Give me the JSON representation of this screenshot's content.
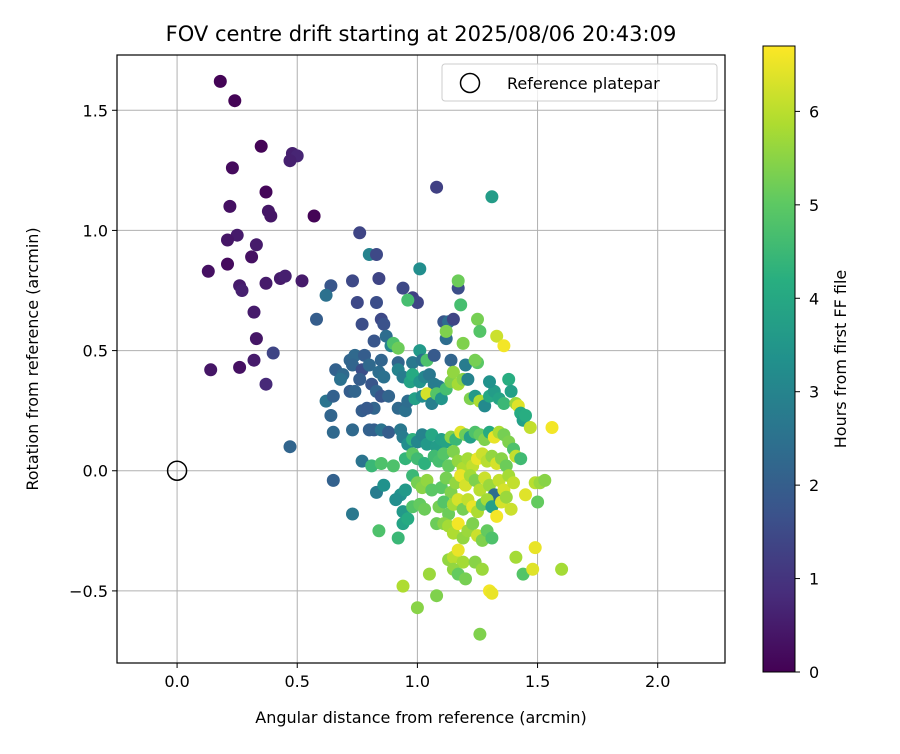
{
  "chart_data": {
    "type": "scatter",
    "title": "FOV centre drift starting at 2025/08/06 20:43:09",
    "xlabel": "Angular distance from reference (arcmin)",
    "ylabel": "Rotation from reference (arcmin)",
    "xlim": [
      -0.25,
      2.28
    ],
    "ylim": [
      -0.8,
      1.73
    ],
    "x_ticks": [
      0.0,
      0.5,
      1.0,
      1.5,
      2.0
    ],
    "x_tick_labels": [
      "0.0",
      "0.5",
      "1.0",
      "1.5",
      "2.0"
    ],
    "y_ticks": [
      -0.5,
      0.0,
      0.5,
      1.0,
      1.5
    ],
    "y_tick_labels": [
      "−0.5",
      "0.0",
      "0.5",
      "1.0",
      "1.5"
    ],
    "grid": true,
    "legend": {
      "position": "top-right",
      "entries": [
        "Reference platepar"
      ]
    },
    "reference_point": {
      "x": 0.0,
      "y": 0.0
    },
    "colorbar": {
      "label": "Hours from first FF file",
      "colormap": "viridis",
      "range": [
        0,
        6.7
      ],
      "ticks": [
        0,
        1,
        2,
        3,
        4,
        5,
        6
      ],
      "tick_labels": [
        "0",
        "1",
        "2",
        "3",
        "4",
        "5",
        "6"
      ]
    },
    "points": [
      [
        0.18,
        1.62,
        0.05
      ],
      [
        0.24,
        1.54,
        0.05
      ],
      [
        0.35,
        1.35,
        0.05
      ],
      [
        0.48,
        1.32,
        0.6
      ],
      [
        0.5,
        1.31,
        0.7
      ],
      [
        0.47,
        1.29,
        0.6
      ],
      [
        0.23,
        1.26,
        0.2
      ],
      [
        0.37,
        1.16,
        0.1
      ],
      [
        0.22,
        1.1,
        0.3
      ],
      [
        0.38,
        1.08,
        0.4
      ],
      [
        0.39,
        1.06,
        0.4
      ],
      [
        0.57,
        1.06,
        0.05
      ],
      [
        1.08,
        1.18,
        1.3
      ],
      [
        1.31,
        1.14,
        3.7
      ],
      [
        0.25,
        0.98,
        0.5
      ],
      [
        0.21,
        0.96,
        0.4
      ],
      [
        0.33,
        0.94,
        0.5
      ],
      [
        0.31,
        0.89,
        0.3
      ],
      [
        0.21,
        0.86,
        0.2
      ],
      [
        0.13,
        0.83,
        0.3
      ],
      [
        0.26,
        0.77,
        0.5
      ],
      [
        0.27,
        0.75,
        0.6
      ],
      [
        0.37,
        0.78,
        0.5
      ],
      [
        0.43,
        0.8,
        0.5
      ],
      [
        0.45,
        0.81,
        0.6
      ],
      [
        0.52,
        0.79,
        0.5
      ],
      [
        0.32,
        0.66,
        0.5
      ],
      [
        0.33,
        0.55,
        0.4
      ],
      [
        0.32,
        0.46,
        0.5
      ],
      [
        0.4,
        0.49,
        1.4
      ],
      [
        0.26,
        0.43,
        0.3
      ],
      [
        0.14,
        0.42,
        0.4
      ],
      [
        0.37,
        0.36,
        0.8
      ],
      [
        0.47,
        0.1,
        2.2
      ],
      [
        0.76,
        0.99,
        1.4
      ],
      [
        0.8,
        0.9,
        3.0
      ],
      [
        0.83,
        0.9,
        1.5
      ],
      [
        0.64,
        0.77,
        1.8
      ],
      [
        0.62,
        0.73,
        2.5
      ],
      [
        0.73,
        0.79,
        1.5
      ],
      [
        0.84,
        0.8,
        1.4
      ],
      [
        0.94,
        0.76,
        1.5
      ],
      [
        0.98,
        0.72,
        1.3
      ],
      [
        1.0,
        0.7,
        1.4
      ],
      [
        0.75,
        0.7,
        1.5
      ],
      [
        0.83,
        0.7,
        1.6
      ],
      [
        0.58,
        0.63,
        2.0
      ],
      [
        0.85,
        0.63,
        1.5
      ],
      [
        0.86,
        0.61,
        1.7
      ],
      [
        0.77,
        0.61,
        1.6
      ],
      [
        0.87,
        0.56,
        2.4
      ],
      [
        0.82,
        0.54,
        1.8
      ],
      [
        0.89,
        0.52,
        3.0
      ],
      [
        0.9,
        0.53,
        4.8
      ],
      [
        0.92,
        0.51,
        5.2
      ],
      [
        0.85,
        0.46,
        2.2
      ],
      [
        0.92,
        0.45,
        2.2
      ],
      [
        0.98,
        0.45,
        2.7
      ],
      [
        1.01,
        0.5,
        3.6
      ],
      [
        1.02,
        0.46,
        2.5
      ],
      [
        1.01,
        0.84,
        3.3
      ],
      [
        1.04,
        0.46,
        4.8
      ],
      [
        0.96,
        0.71,
        4.7
      ],
      [
        1.11,
        0.62,
        1.8
      ],
      [
        1.13,
        0.62,
        2.4
      ],
      [
        1.15,
        0.63,
        1.4
      ],
      [
        1.12,
        0.55,
        2.4
      ],
      [
        1.12,
        0.58,
        5.4
      ],
      [
        1.17,
        0.76,
        1.6
      ],
      [
        1.17,
        0.79,
        5.2
      ],
      [
        1.18,
        0.69,
        4.7
      ],
      [
        1.25,
        0.63,
        5.3
      ],
      [
        1.26,
        0.58,
        4.9
      ],
      [
        1.33,
        0.56,
        6.2
      ],
      [
        1.36,
        0.52,
        6.6
      ],
      [
        1.07,
        0.48,
        1.9
      ],
      [
        1.14,
        0.46,
        2.2
      ],
      [
        1.2,
        0.44,
        2.8
      ],
      [
        1.19,
        0.53,
        5.4
      ],
      [
        1.25,
        0.45,
        5.0
      ],
      [
        1.24,
        0.46,
        5.3
      ],
      [
        0.66,
        0.42,
        2.1
      ],
      [
        0.69,
        0.4,
        2.3
      ],
      [
        0.72,
        0.46,
        2.2
      ],
      [
        0.74,
        0.48,
        2.3
      ],
      [
        0.73,
        0.44,
        2.2
      ],
      [
        0.77,
        0.42,
        1.6
      ],
      [
        0.76,
        0.38,
        2.0
      ],
      [
        0.78,
        0.48,
        2.0
      ],
      [
        0.8,
        0.44,
        2.3
      ],
      [
        0.84,
        0.41,
        2.4
      ],
      [
        0.86,
        0.39,
        2.5
      ],
      [
        0.72,
        0.33,
        2.0
      ],
      [
        0.74,
        0.33,
        2.2
      ],
      [
        0.81,
        0.36,
        1.8
      ],
      [
        0.83,
        0.33,
        2.2
      ],
      [
        0.85,
        0.31,
        1.8
      ],
      [
        0.88,
        0.31,
        2.2
      ],
      [
        0.62,
        0.29,
        2.6
      ],
      [
        0.65,
        0.31,
        2.1
      ],
      [
        0.68,
        0.38,
        2.5
      ],
      [
        0.82,
        0.26,
        2.2
      ],
      [
        0.77,
        0.25,
        2.0
      ],
      [
        0.79,
        0.26,
        1.9
      ],
      [
        0.73,
        0.17,
        2.3
      ],
      [
        0.64,
        0.23,
        2.2
      ],
      [
        0.65,
        0.16,
        2.3
      ],
      [
        0.82,
        0.17,
        2.0
      ],
      [
        0.8,
        0.17,
        2.1
      ],
      [
        0.85,
        0.17,
        2.6
      ],
      [
        0.88,
        0.16,
        2.0
      ],
      [
        0.92,
        0.26,
        2.3
      ],
      [
        0.93,
        0.17,
        2.7
      ],
      [
        0.95,
        0.25,
        2.5
      ],
      [
        0.96,
        0.29,
        2.4
      ],
      [
        0.92,
        0.42,
        3.0
      ],
      [
        0.94,
        0.39,
        2.8
      ],
      [
        0.97,
        0.37,
        3.9
      ],
      [
        0.98,
        0.4,
        4.1
      ],
      [
        1.01,
        0.37,
        3.5
      ],
      [
        1.03,
        0.39,
        3.1
      ],
      [
        1.05,
        0.4,
        2.7
      ],
      [
        1.07,
        0.36,
        2.8
      ],
      [
        1.09,
        0.35,
        2.8
      ],
      [
        0.99,
        0.3,
        3.8
      ],
      [
        1.02,
        0.31,
        3.3
      ],
      [
        1.04,
        0.32,
        6.3
      ],
      [
        1.06,
        0.28,
        2.9
      ],
      [
        1.08,
        0.32,
        4.9
      ],
      [
        1.1,
        0.3,
        3.5
      ],
      [
        1.12,
        0.34,
        4.7
      ],
      [
        1.14,
        0.37,
        5.4
      ],
      [
        1.15,
        0.41,
        5.6
      ],
      [
        1.17,
        0.36,
        5.8
      ],
      [
        1.19,
        0.38,
        5.5
      ],
      [
        1.21,
        0.38,
        3.0
      ],
      [
        1.22,
        0.3,
        5.4
      ],
      [
        1.24,
        0.31,
        3.6
      ],
      [
        1.26,
        0.29,
        5.9
      ],
      [
        1.28,
        0.27,
        3.2
      ],
      [
        1.3,
        0.31,
        4.0
      ],
      [
        1.32,
        0.33,
        3.7
      ],
      [
        1.34,
        0.3,
        3.9
      ],
      [
        1.36,
        0.28,
        4.5
      ],
      [
        1.38,
        0.38,
        4.2
      ],
      [
        1.39,
        0.33,
        3.8
      ],
      [
        1.3,
        0.37,
        3.4
      ],
      [
        1.41,
        0.28,
        5.7
      ],
      [
        1.42,
        0.27,
        6.4
      ],
      [
        1.43,
        0.24,
        4.1
      ],
      [
        1.44,
        0.21,
        3.8
      ],
      [
        1.45,
        0.23,
        4.2
      ],
      [
        1.47,
        0.18,
        6.1
      ],
      [
        1.56,
        0.18,
        6.6
      ],
      [
        0.94,
        0.14,
        2.8
      ],
      [
        0.96,
        0.11,
        3.3
      ],
      [
        0.98,
        0.13,
        4.3
      ],
      [
        1.0,
        0.12,
        3.1
      ],
      [
        1.02,
        0.15,
        3.0
      ],
      [
        1.04,
        0.11,
        3.6
      ],
      [
        1.06,
        0.15,
        4.0
      ],
      [
        1.08,
        0.1,
        3.7
      ],
      [
        1.1,
        0.13,
        3.8
      ],
      [
        1.12,
        0.12,
        3.9
      ],
      [
        1.14,
        0.14,
        5.5
      ],
      [
        1.16,
        0.13,
        4.5
      ],
      [
        1.18,
        0.16,
        6.4
      ],
      [
        1.2,
        0.15,
        5.2
      ],
      [
        1.22,
        0.14,
        3.8
      ],
      [
        1.24,
        0.16,
        4.8
      ],
      [
        1.26,
        0.15,
        5.1
      ],
      [
        1.28,
        0.13,
        5.4
      ],
      [
        1.3,
        0.16,
        4.1
      ],
      [
        1.32,
        0.14,
        6.5
      ],
      [
        1.34,
        0.16,
        5.9
      ],
      [
        1.36,
        0.15,
        5.3
      ],
      [
        1.38,
        0.12,
        5.4
      ],
      [
        1.4,
        0.09,
        4.8
      ],
      [
        0.77,
        0.04,
        2.6
      ],
      [
        0.81,
        0.02,
        4.5
      ],
      [
        0.85,
        0.03,
        4.8
      ],
      [
        0.9,
        0.02,
        4.8
      ],
      [
        0.95,
        0.05,
        4.4
      ],
      [
        0.98,
        0.07,
        5.0
      ],
      [
        1.0,
        0.05,
        4.6
      ],
      [
        1.03,
        0.03,
        4.3
      ],
      [
        1.07,
        0.06,
        4.6
      ],
      [
        1.09,
        0.04,
        4.7
      ],
      [
        1.11,
        0.07,
        4.9
      ],
      [
        1.13,
        0.02,
        5.1
      ],
      [
        1.15,
        0.08,
        5.4
      ],
      [
        1.17,
        0.04,
        5.6
      ],
      [
        1.19,
        0.01,
        5.9
      ],
      [
        1.21,
        0.05,
        5.8
      ],
      [
        1.23,
        0.02,
        6.1
      ],
      [
        1.25,
        0.05,
        6.5
      ],
      [
        1.27,
        0.07,
        6.2
      ],
      [
        1.29,
        0.04,
        6.0
      ],
      [
        1.31,
        0.06,
        5.6
      ],
      [
        1.33,
        0.03,
        6.3
      ],
      [
        1.35,
        0.05,
        5.5
      ],
      [
        1.37,
        0.02,
        5.2
      ],
      [
        1.41,
        0.06,
        6.1
      ],
      [
        1.43,
        0.05,
        4.6
      ],
      [
        0.65,
        -0.04,
        2.1
      ],
      [
        0.83,
        -0.09,
        2.8
      ],
      [
        0.86,
        -0.06,
        3.4
      ],
      [
        0.93,
        -0.1,
        3.4
      ],
      [
        0.95,
        -0.08,
        3.6
      ],
      [
        0.98,
        -0.02,
        4.5
      ],
      [
        1.0,
        -0.05,
        5.3
      ],
      [
        1.02,
        -0.07,
        5.5
      ],
      [
        1.04,
        -0.04,
        5.6
      ],
      [
        1.06,
        -0.08,
        5.0
      ],
      [
        1.1,
        -0.07,
        5.0
      ],
      [
        1.12,
        -0.03,
        5.3
      ],
      [
        1.14,
        -0.09,
        5.4
      ],
      [
        1.16,
        -0.05,
        5.6
      ],
      [
        1.18,
        -0.02,
        6.5
      ],
      [
        1.2,
        -0.06,
        6.3
      ],
      [
        1.22,
        -0.02,
        5.8
      ],
      [
        1.24,
        -0.04,
        5.4
      ],
      [
        1.26,
        -0.08,
        6.0
      ],
      [
        1.28,
        -0.03,
        6.2
      ],
      [
        1.3,
        -0.06,
        5.7
      ],
      [
        1.32,
        -0.1,
        2.4
      ],
      [
        1.34,
        -0.04,
        6.1
      ],
      [
        1.36,
        -0.08,
        6.3
      ],
      [
        1.38,
        -0.02,
        5.8
      ],
      [
        1.4,
        -0.05,
        6.1
      ],
      [
        1.45,
        -0.1,
        6.4
      ],
      [
        1.49,
        -0.05,
        6.0
      ],
      [
        1.51,
        -0.05,
        5.7
      ],
      [
        1.53,
        -0.04,
        5.5
      ],
      [
        0.73,
        -0.18,
        2.7
      ],
      [
        0.91,
        -0.12,
        3.3
      ],
      [
        0.94,
        -0.17,
        3.6
      ],
      [
        0.98,
        -0.15,
        4.9
      ],
      [
        1.01,
        -0.14,
        5.1
      ],
      [
        1.03,
        -0.16,
        5.2
      ],
      [
        1.09,
        -0.15,
        5.3
      ],
      [
        1.11,
        -0.13,
        4.9
      ],
      [
        1.13,
        -0.18,
        5.2
      ],
      [
        1.15,
        -0.14,
        5.8
      ],
      [
        1.17,
        -0.12,
        6.3
      ],
      [
        1.19,
        -0.16,
        5.3
      ],
      [
        1.21,
        -0.12,
        6.1
      ],
      [
        1.23,
        -0.15,
        6.5
      ],
      [
        1.25,
        -0.17,
        5.9
      ],
      [
        1.27,
        -0.14,
        5.0
      ],
      [
        1.29,
        -0.12,
        5.8
      ],
      [
        1.31,
        -0.15,
        3.8
      ],
      [
        1.33,
        -0.19,
        6.6
      ],
      [
        1.35,
        -0.13,
        6.3
      ],
      [
        1.37,
        -0.11,
        5.7
      ],
      [
        1.39,
        -0.16,
        6.2
      ],
      [
        1.5,
        -0.13,
        5.1
      ],
      [
        0.84,
        -0.25,
        4.8
      ],
      [
        0.92,
        -0.28,
        4.5
      ],
      [
        0.94,
        -0.22,
        3.9
      ],
      [
        0.96,
        -0.2,
        4.1
      ],
      [
        1.08,
        -0.22,
        5.2
      ],
      [
        1.11,
        -0.22,
        5.5
      ],
      [
        1.13,
        -0.23,
        5.8
      ],
      [
        1.15,
        -0.26,
        5.9
      ],
      [
        1.17,
        -0.22,
        6.6
      ],
      [
        1.19,
        -0.28,
        5.6
      ],
      [
        1.21,
        -0.25,
        5.7
      ],
      [
        1.23,
        -0.22,
        5.4
      ],
      [
        1.25,
        -0.27,
        6.2
      ],
      [
        1.27,
        -0.29,
        5.4
      ],
      [
        1.29,
        -0.25,
        5.1
      ],
      [
        1.31,
        -0.28,
        4.8
      ],
      [
        0.94,
        -0.48,
        5.9
      ],
      [
        1.05,
        -0.43,
        5.7
      ],
      [
        1.08,
        -0.52,
        5.4
      ],
      [
        1.13,
        -0.37,
        5.6
      ],
      [
        1.15,
        -0.36,
        6.0
      ],
      [
        1.17,
        -0.33,
        6.5
      ],
      [
        1.19,
        -0.38,
        5.8
      ],
      [
        1.15,
        -0.41,
        5.6
      ],
      [
        1.17,
        -0.43,
        5.1
      ],
      [
        1.2,
        -0.45,
        5.3
      ],
      [
        1.24,
        -0.38,
        5.5
      ],
      [
        1.27,
        -0.41,
        5.7
      ],
      [
        1.3,
        -0.5,
        6.6
      ],
      [
        1.31,
        -0.51,
        6.5
      ],
      [
        1.41,
        -0.36,
        5.8
      ],
      [
        1.44,
        -0.43,
        4.9
      ],
      [
        1.48,
        -0.41,
        6.4
      ],
      [
        1.49,
        -0.32,
        6.5
      ],
      [
        1.6,
        -0.41,
        5.8
      ],
      [
        1.0,
        -0.57,
        5.5
      ],
      [
        1.26,
        -0.68,
        5.4
      ]
    ]
  }
}
